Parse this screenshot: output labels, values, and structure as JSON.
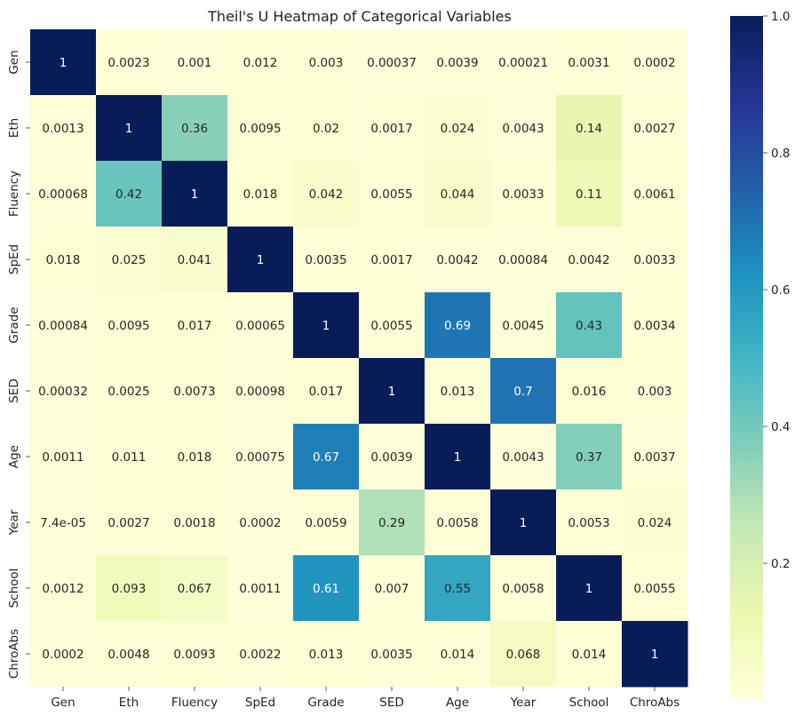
{
  "chart_data": {
    "type": "heatmap",
    "title": "Theil's U Heatmap of Categorical Variables",
    "xlabel": "",
    "ylabel": "",
    "rows": [
      "Gen",
      "Eth",
      "Fluency",
      "SpEd",
      "Grade",
      "SED",
      "Age",
      "Year",
      "School",
      "ChroAbs"
    ],
    "cols": [
      "Gen",
      "Eth",
      "Fluency",
      "SpEd",
      "Grade",
      "SED",
      "Age",
      "Year",
      "School",
      "ChroAbs"
    ],
    "values": [
      [
        1,
        0.0023,
        0.001,
        0.012,
        0.003,
        0.00037,
        0.0039,
        0.00021,
        0.0031,
        0.0002
      ],
      [
        0.0013,
        1,
        0.36,
        0.0095,
        0.02,
        0.0017,
        0.024,
        0.0043,
        0.14,
        0.0027
      ],
      [
        0.00068,
        0.42,
        1,
        0.018,
        0.042,
        0.0055,
        0.044,
        0.0033,
        0.11,
        0.0061
      ],
      [
        0.018,
        0.025,
        0.041,
        1,
        0.0035,
        0.0017,
        0.0042,
        0.00084,
        0.0042,
        0.0033
      ],
      [
        0.00084,
        0.0095,
        0.017,
        0.00065,
        1,
        0.0055,
        0.69,
        0.0045,
        0.43,
        0.0034
      ],
      [
        0.00032,
        0.0025,
        0.0073,
        0.00098,
        0.017,
        1,
        0.013,
        0.7,
        0.016,
        0.003
      ],
      [
        0.0011,
        0.011,
        0.018,
        0.00075,
        0.67,
        0.0039,
        1,
        0.0043,
        0.37,
        0.0037
      ],
      [
        7.4e-05,
        0.0027,
        0.0018,
        0.0002,
        0.0059,
        0.29,
        0.0058,
        1,
        0.0053,
        0.024
      ],
      [
        0.0012,
        0.093,
        0.067,
        0.0011,
        0.61,
        0.007,
        0.55,
        0.0058,
        1,
        0.0055
      ],
      [
        0.0002,
        0.0048,
        0.0093,
        0.0022,
        0.013,
        0.0035,
        0.014,
        0.068,
        0.014,
        1
      ]
    ],
    "labels": [
      [
        "1",
        "0.0023",
        "0.001",
        "0.012",
        "0.003",
        "0.00037",
        "0.0039",
        "0.00021",
        "0.0031",
        "0.0002"
      ],
      [
        "0.0013",
        "1",
        "0.36",
        "0.0095",
        "0.02",
        "0.0017",
        "0.024",
        "0.0043",
        "0.14",
        "0.0027"
      ],
      [
        "0.00068",
        "0.42",
        "1",
        "0.018",
        "0.042",
        "0.0055",
        "0.044",
        "0.0033",
        "0.11",
        "0.0061"
      ],
      [
        "0.018",
        "0.025",
        "0.041",
        "1",
        "0.0035",
        "0.0017",
        "0.0042",
        "0.00084",
        "0.0042",
        "0.0033"
      ],
      [
        "0.00084",
        "0.0095",
        "0.017",
        "0.00065",
        "1",
        "0.0055",
        "0.69",
        "0.0045",
        "0.43",
        "0.0034"
      ],
      [
        "0.00032",
        "0.0025",
        "0.0073",
        "0.00098",
        "0.017",
        "1",
        "0.013",
        "0.7",
        "0.016",
        "0.003"
      ],
      [
        "0.0011",
        "0.011",
        "0.018",
        "0.00075",
        "0.67",
        "0.0039",
        "1",
        "0.0043",
        "0.37",
        "0.0037"
      ],
      [
        "7.4e-05",
        "0.0027",
        "0.0018",
        "0.0002",
        "0.0059",
        "0.29",
        "0.0058",
        "1",
        "0.0053",
        "0.024"
      ],
      [
        "0.0012",
        "0.093",
        "0.067",
        "0.0011",
        "0.61",
        "0.007",
        "0.55",
        "0.0058",
        "1",
        "0.0055"
      ],
      [
        "0.0002",
        "0.0048",
        "0.0093",
        "0.0022",
        "0.013",
        "0.0035",
        "0.014",
        "0.068",
        "0.014",
        "1"
      ]
    ],
    "colormap": "YlGnBu",
    "colormap_stops": [
      "#ffffd9",
      "#edf8b1",
      "#c7e9b4",
      "#7fcdbb",
      "#41b6c4",
      "#1d91c0",
      "#225ea8",
      "#253494",
      "#081d58"
    ],
    "vmin": 0,
    "vmax": 1,
    "colorbar_ticks": [
      0.2,
      0.4,
      0.6,
      0.8,
      1.0
    ],
    "colorbar_tick_labels": [
      "0.2",
      "0.4",
      "0.6",
      "0.8",
      "1.0"
    ],
    "colorbar_range": [
      7.4e-05,
      1
    ]
  }
}
